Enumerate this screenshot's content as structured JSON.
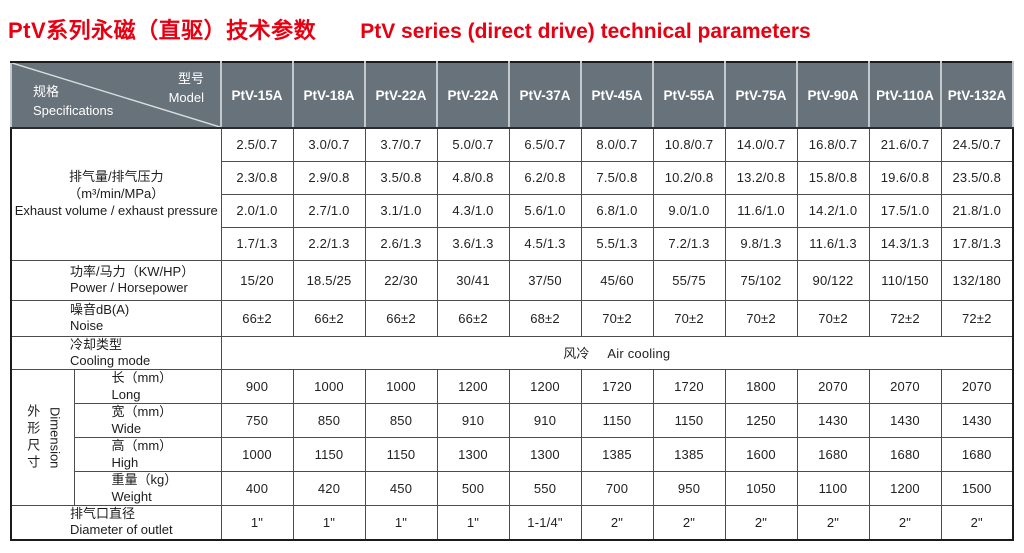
{
  "colors": {
    "accent_red": "#e60012",
    "header_bg": "#68727a",
    "header_text": "#ffffff"
  },
  "page": {
    "title_zh": "PtV系列永磁（直驱）技术参数",
    "title_en": "PtV series (direct drive) technical parameters"
  },
  "table": {
    "corner": {
      "model_zh": "型号",
      "model_en": "Model",
      "spec_zh": "规格",
      "spec_en": "Specifications"
    },
    "models": [
      "PtV-15A",
      "PtV-18A",
      "PtV-22A",
      "PtV-22A",
      "PtV-37A",
      "PtV-45A",
      "PtV-55A",
      "PtV-75A",
      "PtV-90A",
      "PtV-110A",
      "PtV-132A"
    ],
    "exhaust": {
      "label_zh": "排气量/排气压力",
      "label_unit": "（m³/min/MPa）",
      "label_en": "Exhaust volume / exhaust pressure",
      "rows": [
        [
          "2.5/0.7",
          "3.0/0.7",
          "3.7/0.7",
          "5.0/0.7",
          "6.5/0.7",
          "8.0/0.7",
          "10.8/0.7",
          "14.0/0.7",
          "16.8/0.7",
          "21.6/0.7",
          "24.5/0.7"
        ],
        [
          "2.3/0.8",
          "2.9/0.8",
          "3.5/0.8",
          "4.8/0.8",
          "6.2/0.8",
          "7.5/0.8",
          "10.2/0.8",
          "13.2/0.8",
          "15.8/0.8",
          "19.6/0.8",
          "23.5/0.8"
        ],
        [
          "2.0/1.0",
          "2.7/1.0",
          "3.1/1.0",
          "4.3/1.0",
          "5.6/1.0",
          "6.8/1.0",
          "9.0/1.0",
          "11.6/1.0",
          "14.2/1.0",
          "17.5/1.0",
          "21.8/1.0"
        ],
        [
          "1.7/1.3",
          "2.2/1.3",
          "2.6/1.3",
          "3.6/1.3",
          "4.5/1.3",
          "5.5/1.3",
          "7.2/1.3",
          "9.8/1.3",
          "11.6/1.3",
          "14.3/1.3",
          "17.8/1.3"
        ]
      ]
    },
    "power": {
      "label_zh": "功率/马力（KW/HP）",
      "label_en": "Power / Horsepower",
      "values": [
        "15/20",
        "18.5/25",
        "22/30",
        "30/41",
        "37/50",
        "45/60",
        "55/75",
        "75/102",
        "90/122",
        "110/150",
        "132/180"
      ]
    },
    "noise": {
      "label_zh": "噪音dB(A)",
      "label_en": "Noise",
      "values": [
        "66±2",
        "66±2",
        "66±2",
        "66±2",
        "68±2",
        "70±2",
        "70±2",
        "70±2",
        "70±2",
        "72±2",
        "72±2"
      ]
    },
    "cooling": {
      "label_zh": "冷却类型",
      "label_en": "Cooling mode",
      "value_zh": "风冷",
      "value_en": "Air cooling"
    },
    "dimension": {
      "group_zh": "外形尺寸",
      "group_en": "Dimension",
      "long": {
        "label_zh": "长（mm）",
        "label_en": "Long",
        "values": [
          "900",
          "1000",
          "1000",
          "1200",
          "1200",
          "1720",
          "1720",
          "1800",
          "2070",
          "2070",
          "2070"
        ]
      },
      "wide": {
        "label_zh": "宽（mm）",
        "label_en": "Wide",
        "values": [
          "750",
          "850",
          "850",
          "910",
          "910",
          "1150",
          "1150",
          "1250",
          "1430",
          "1430",
          "1430"
        ]
      },
      "high": {
        "label_zh": "高（mm）",
        "label_en": "High",
        "values": [
          "1000",
          "1150",
          "1150",
          "1300",
          "1300",
          "1385",
          "1385",
          "1600",
          "1680",
          "1680",
          "1680"
        ]
      },
      "weight": {
        "label_zh": "重量（kg）",
        "label_en": "Weight",
        "values": [
          "400",
          "420",
          "450",
          "500",
          "550",
          "700",
          "950",
          "1050",
          "1100",
          "1200",
          "1500"
        ]
      }
    },
    "outlet": {
      "label_zh": "排气口直径",
      "label_en": "Diameter of outlet",
      "values": [
        "1\"",
        "1\"",
        "1\"",
        "1\"",
        "1-1/4\"",
        "2\"",
        "2\"",
        "2\"",
        "2\"",
        "2\"",
        "2\""
      ]
    }
  }
}
